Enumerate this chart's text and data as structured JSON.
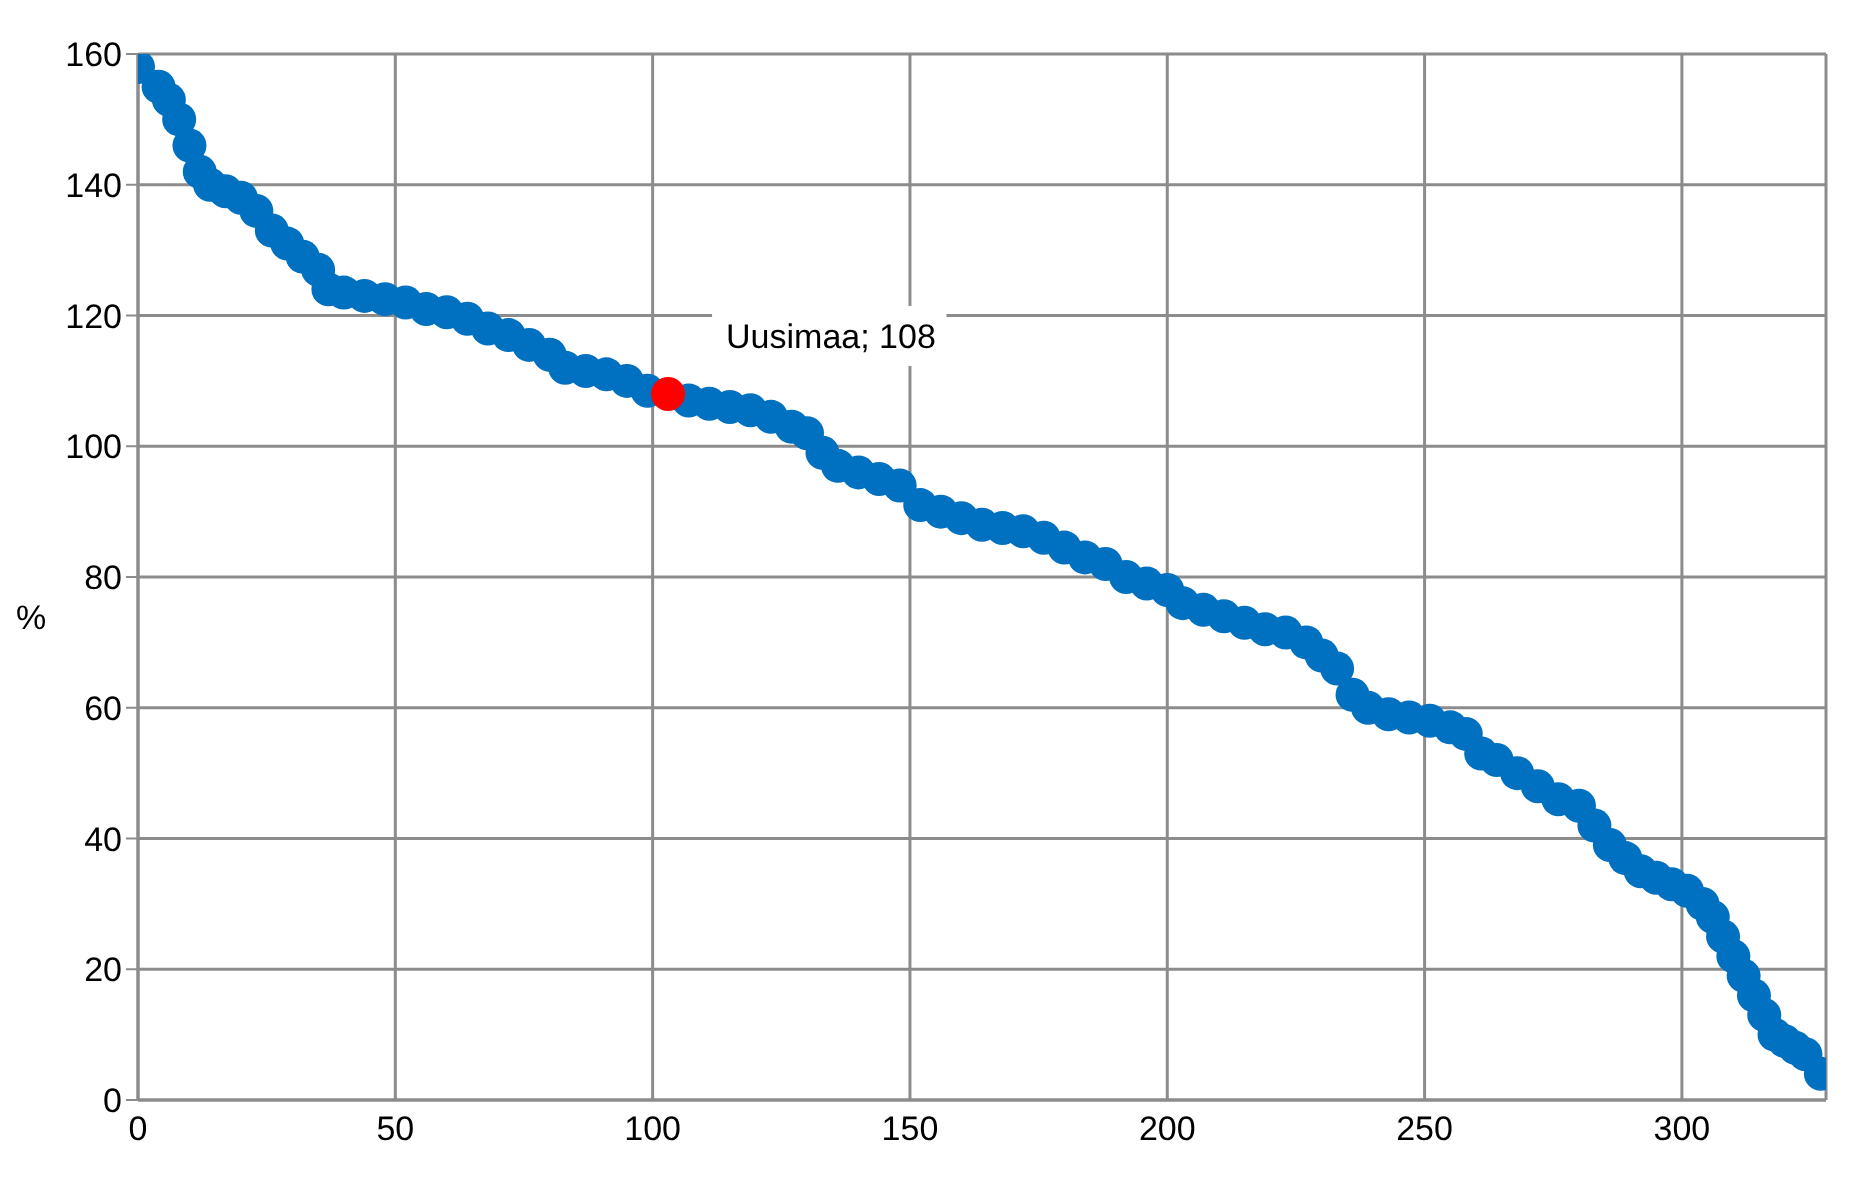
{
  "chart_data": {
    "type": "scatter",
    "ylabel": "%",
    "xlim": [
      0,
      328
    ],
    "xticks": [
      0,
      50,
      100,
      150,
      200,
      250,
      300
    ],
    "ylim": [
      0,
      160
    ],
    "yticks": [
      0,
      20,
      40,
      60,
      80,
      100,
      120,
      140,
      160
    ],
    "grid": true,
    "marker": "circle",
    "series": [
      {
        "color": "#0070c0",
        "x": [
          0,
          4,
          6,
          8,
          10,
          12,
          14,
          17,
          20,
          23,
          26,
          29,
          32,
          35,
          37,
          40,
          44,
          48,
          52,
          56,
          60,
          64,
          68,
          72,
          76,
          80,
          83,
          87,
          91,
          95,
          99,
          107,
          111,
          115,
          119,
          123,
          127,
          130,
          133,
          136,
          140,
          144,
          148,
          152,
          156,
          160,
          164,
          168,
          172,
          176,
          180,
          184,
          188,
          192,
          196,
          200,
          203,
          207,
          211,
          215,
          219,
          223,
          227,
          230,
          233,
          236,
          239,
          243,
          247,
          251,
          255,
          258,
          261,
          264,
          268,
          272,
          276,
          280,
          283,
          286,
          289,
          292,
          295,
          298,
          301,
          304,
          306,
          308,
          310,
          312,
          314,
          316,
          318,
          320,
          322,
          324,
          327
        ],
        "values": [
          158,
          155,
          153,
          150,
          146,
          142,
          140,
          139,
          138,
          136,
          133,
          131,
          129,
          127,
          124,
          123.5,
          123,
          122.5,
          122,
          121,
          120.5,
          119.5,
          118,
          117,
          115.5,
          114,
          112,
          111.5,
          111,
          110,
          108.5,
          107,
          106.5,
          106,
          105.5,
          104.5,
          103,
          102,
          99,
          97,
          96,
          95,
          94,
          91,
          90,
          89,
          88,
          87.5,
          87,
          86,
          84.5,
          83,
          82,
          80,
          79,
          78,
          76,
          75,
          74,
          73,
          72,
          71.5,
          70,
          68,
          66,
          62,
          60,
          59,
          58.5,
          58,
          57,
          56,
          53,
          52,
          50,
          48,
          46,
          45,
          42,
          39,
          37,
          35,
          34,
          33,
          32,
          30,
          28,
          25,
          22,
          19,
          16,
          13,
          10,
          9,
          8,
          7,
          4
        ]
      },
      {
        "color": "#ff0000",
        "x": [
          103
        ],
        "values": [
          108
        ]
      }
    ],
    "annotations": [
      {
        "text": "Uusimaa; 108",
        "x": 103,
        "y": 108
      }
    ]
  }
}
